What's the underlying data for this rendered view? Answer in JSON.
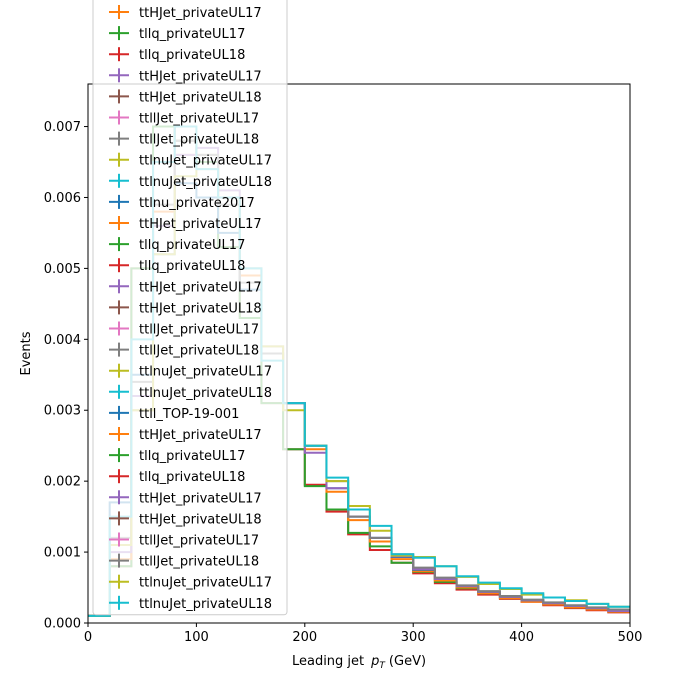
{
  "chart_data": {
    "type": "line",
    "xlabel": "Leading jet",
    "xlabel_math": "p",
    "xlabel_math_sub": "T",
    "xlabel_unit": "(GeV)",
    "ylabel": "Events",
    "xlim": [
      0,
      500
    ],
    "ylim": [
      0,
      0.0076
    ],
    "xticks": [
      0,
      100,
      200,
      300,
      400,
      500
    ],
    "yticks": [
      0.0,
      0.001,
      0.002,
      0.003,
      0.004,
      0.005,
      0.006,
      0.007
    ],
    "ytick_labels": [
      "0.000",
      "0.001",
      "0.002",
      "0.003",
      "0.004",
      "0.005",
      "0.006",
      "0.007"
    ],
    "grid": false,
    "legend_placement": "top-left",
    "bin_edges": [
      0,
      20,
      40,
      60,
      80,
      100,
      120,
      140,
      160,
      180,
      200,
      220,
      240,
      260,
      280,
      300,
      320,
      340,
      360,
      380,
      400,
      420,
      440,
      460,
      480,
      500
    ],
    "legend": [
      {
        "name": "ttHJet_privateUL17",
        "color": "#ff7f0e"
      },
      {
        "name": "tllq_privateUL17",
        "color": "#2ca02c"
      },
      {
        "name": "tllq_privateUL18",
        "color": "#d62728"
      },
      {
        "name": "ttHJet_privateUL17",
        "color": "#9467bd"
      },
      {
        "name": "ttHJet_privateUL18",
        "color": "#8c564b"
      },
      {
        "name": "ttllJet_privateUL17",
        "color": "#e377c2"
      },
      {
        "name": "ttllJet_privateUL18",
        "color": "#7f7f7f"
      },
      {
        "name": "ttlnuJet_privateUL17",
        "color": "#bcbd22"
      },
      {
        "name": "ttlnuJet_privateUL18",
        "color": "#17becf"
      },
      {
        "name": "ttlnu_private2017",
        "color": "#1f77b4"
      },
      {
        "name": "ttHJet_privateUL17",
        "color": "#ff7f0e"
      },
      {
        "name": "tllq_privateUL17",
        "color": "#2ca02c"
      },
      {
        "name": "tllq_privateUL18",
        "color": "#d62728"
      },
      {
        "name": "ttHJet_privateUL17",
        "color": "#9467bd"
      },
      {
        "name": "ttHJet_privateUL18",
        "color": "#8c564b"
      },
      {
        "name": "ttllJet_privateUL17",
        "color": "#e377c2"
      },
      {
        "name": "ttllJet_privateUL18",
        "color": "#7f7f7f"
      },
      {
        "name": "ttlnuJet_privateUL17",
        "color": "#bcbd22"
      },
      {
        "name": "ttlnuJet_privateUL18",
        "color": "#17becf"
      },
      {
        "name": "ttll_TOP-19-001",
        "color": "#1f77b4"
      },
      {
        "name": "ttHJet_privateUL17",
        "color": "#ff7f0e"
      },
      {
        "name": "tllq_privateUL17",
        "color": "#2ca02c"
      },
      {
        "name": "tllq_privateUL18",
        "color": "#d62728"
      },
      {
        "name": "ttHJet_privateUL17",
        "color": "#9467bd"
      },
      {
        "name": "ttHJet_privateUL18",
        "color": "#8c564b"
      },
      {
        "name": "ttllJet_privateUL17",
        "color": "#e377c2"
      },
      {
        "name": "ttllJet_privateUL18",
        "color": "#7f7f7f"
      },
      {
        "name": "ttlnuJet_privateUL17",
        "color": "#bcbd22"
      },
      {
        "name": "ttlnuJet_privateUL18",
        "color": "#17becf"
      }
    ],
    "series": [
      {
        "color": "#d62728",
        "values": [
          0.0001,
          0.0008,
          0.005,
          0.007,
          0.0068,
          0.0065,
          0.0053,
          0.0043,
          0.0031,
          0.00245,
          0.00195,
          0.00157,
          0.00125,
          0.00103,
          0.00085,
          0.0007,
          0.00056,
          0.00047,
          0.0004,
          0.00034,
          0.0003,
          0.00025,
          0.00021,
          0.00018,
          0.00015
        ]
      },
      {
        "color": "#2ca02c",
        "values": [
          0.0001,
          0.0008,
          0.005,
          0.007,
          0.0068,
          0.0065,
          0.0053,
          0.0043,
          0.0031,
          0.00245,
          0.00193,
          0.0016,
          0.00127,
          0.00108,
          0.00085,
          0.00072,
          0.00058,
          0.00049,
          0.00042,
          0.00035,
          0.00031,
          0.00026,
          0.00022,
          0.00019,
          0.00016
        ]
      },
      {
        "color": "#ff7f0e",
        "values": [
          0.0001,
          0.0009,
          0.003,
          0.0058,
          0.0066,
          0.0066,
          0.006,
          0.0049,
          0.0038,
          0.0031,
          0.00245,
          0.00185,
          0.00145,
          0.00115,
          0.0009,
          0.00073,
          0.0006,
          0.0005,
          0.00042,
          0.00035,
          0.0003,
          0.00026,
          0.00022,
          0.00019,
          0.00016
        ]
      },
      {
        "color": "#1f77b4",
        "values": [
          0.0001,
          0.0017,
          0.0035,
          0.0052,
          0.0062,
          0.006,
          0.0055,
          0.0047,
          0.0038,
          0.0031,
          0.0025,
          0.0019,
          0.0015,
          0.0012,
          0.00093,
          0.00075,
          0.00062,
          0.00052,
          0.00044,
          0.00037,
          0.00032,
          0.00028,
          0.00024,
          0.00021,
          0.00018
        ]
      },
      {
        "color": "#9467bd",
        "values": [
          0.0001,
          0.001,
          0.0032,
          0.0056,
          0.0066,
          0.0067,
          0.0061,
          0.005,
          0.0039,
          0.0031,
          0.0024,
          0.0019,
          0.0015,
          0.0012,
          0.00094,
          0.00076,
          0.00062,
          0.00052,
          0.00044,
          0.00037,
          0.00032,
          0.00028,
          0.00024,
          0.00021,
          0.00017
        ]
      },
      {
        "color": "#7f7f7f",
        "values": [
          0.0001,
          0.0012,
          0.0034,
          0.0059,
          0.0068,
          0.0066,
          0.0059,
          0.0048,
          0.0038,
          0.0031,
          0.0025,
          0.002,
          0.0015,
          0.0012,
          0.00097,
          0.00078,
          0.00064,
          0.00053,
          0.00045,
          0.00038,
          0.00033,
          0.00029,
          0.00025,
          0.00022,
          0.00019
        ]
      },
      {
        "color": "#bcbd22",
        "values": [
          0.0001,
          0.0011,
          0.003,
          0.0052,
          0.0063,
          0.0064,
          0.006,
          0.005,
          0.0039,
          0.003,
          0.0025,
          0.002,
          0.00165,
          0.0013,
          0.00095,
          0.00093,
          0.0008,
          0.00065,
          0.00055,
          0.00048,
          0.0004,
          0.00036,
          0.00032,
          0.00027,
          0.00023
        ]
      },
      {
        "color": "#17becf",
        "values": [
          0.0001,
          0.0015,
          0.004,
          0.0065,
          0.007,
          0.0064,
          0.006,
          0.005,
          0.0037,
          0.0031,
          0.0025,
          0.00205,
          0.0016,
          0.00137,
          0.00097,
          0.00092,
          0.0008,
          0.00066,
          0.00057,
          0.00049,
          0.00042,
          0.00036,
          0.00031,
          0.00027,
          0.00023
        ]
      }
    ]
  }
}
